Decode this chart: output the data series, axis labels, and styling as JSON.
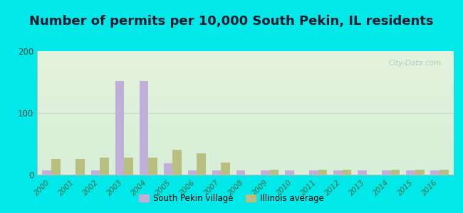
{
  "title": "Number of permits per 10,000 South Pekin, IL residents",
  "years": [
    2000,
    2001,
    2002,
    2003,
    2004,
    2005,
    2006,
    2007,
    2008,
    2009,
    2010,
    2011,
    2012,
    2013,
    2014,
    2015,
    2016
  ],
  "south_pekin": [
    7,
    0,
    7,
    152,
    152,
    18,
    7,
    7,
    7,
    7,
    7,
    7,
    7,
    7,
    7,
    7,
    7
  ],
  "illinois_avg": [
    25,
    25,
    28,
    28,
    28,
    40,
    35,
    20,
    0,
    8,
    0,
    8,
    8,
    0,
    8,
    8,
    8
  ],
  "ylim": [
    0,
    200
  ],
  "yticks": [
    0,
    100,
    200
  ],
  "bar_color_sp": "#c0afd8",
  "bar_color_il": "#b8bf80",
  "bg_outer": "#00e8e8",
  "bar_width": 0.38,
  "legend_sp": "South Pekin village",
  "legend_il": "Illinois average",
  "title_fontsize": 13,
  "watermark": "City-Data.com"
}
